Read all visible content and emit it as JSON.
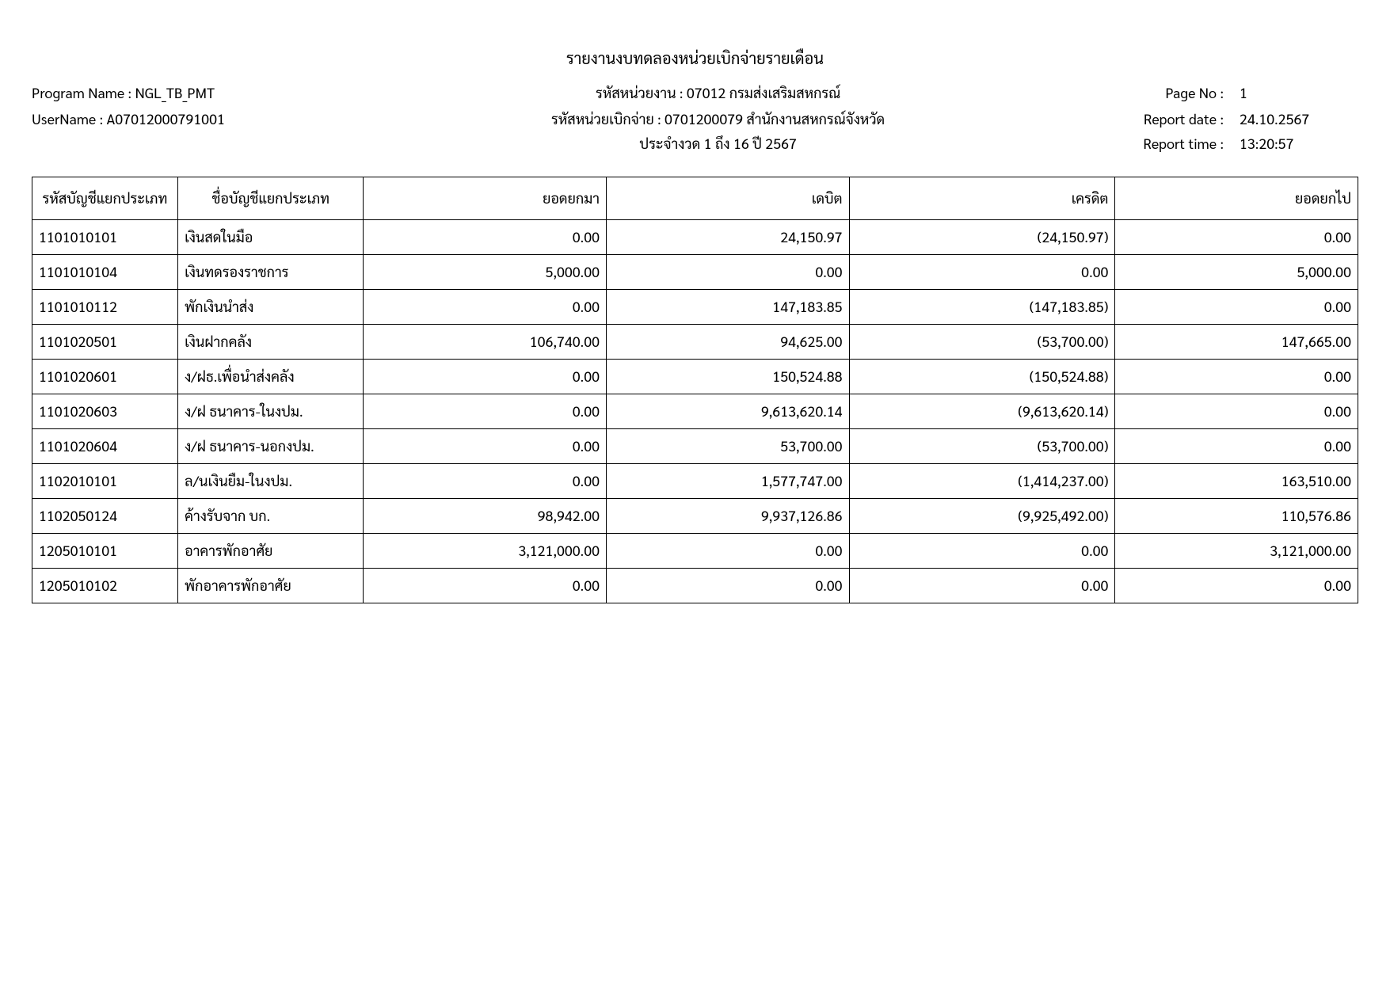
{
  "report_title": "รายงานงบทดลองหน่วยเบิกจ่ายรายเดือน",
  "header": {
    "program_label": "Program Name : NGL_TB_PMT",
    "username_label": "UserName : A07012000791001",
    "agency_code": "รหัสหน่วยงาน : 07012 กรมส่งเสริมสหกรณ์",
    "disbursement_code": "รหัสหน่วยเบิกจ่าย : 0701200079 สำนักงานสหกรณ์จังหวัด",
    "period": "ประจำงวด 1 ถึง 16 ปี 2567",
    "page_label": "Page No :",
    "page_value": "1",
    "report_date_label": "Report date :",
    "report_date_value": "24.10.2567",
    "report_time_label": "Report time :",
    "report_time_value": "13:20:57"
  },
  "columns": [
    "รหัสบัญชีแยกประเภท",
    "ชื่อบัญชีแยกประเภท",
    "ยอดยกมา",
    "เดบิต",
    "เครดิต",
    "ยอดยกไป"
  ],
  "rows": [
    {
      "code": "1101010101",
      "name": "เงินสดในมือ",
      "open": "0.00",
      "debit": "24,150.97",
      "credit": "(24,150.97)",
      "close": "0.00"
    },
    {
      "code": "1101010104",
      "name": "เงินทดรองราชการ",
      "open": "5,000.00",
      "debit": "0.00",
      "credit": "0.00",
      "close": "5,000.00"
    },
    {
      "code": "1101010112",
      "name": "พักเงินนำส่ง",
      "open": "0.00",
      "debit": "147,183.85",
      "credit": "(147,183.85)",
      "close": "0.00"
    },
    {
      "code": "1101020501",
      "name": "เงินฝากคลัง",
      "open": "106,740.00",
      "debit": "94,625.00",
      "credit": "(53,700.00)",
      "close": "147,665.00"
    },
    {
      "code": "1101020601",
      "name": "ง/ฝธ.เพื่อนำส่งคลัง",
      "open": "0.00",
      "debit": "150,524.88",
      "credit": "(150,524.88)",
      "close": "0.00"
    },
    {
      "code": "1101020603",
      "name": "ง/ฝ ธนาคาร-ในงปม.",
      "open": "0.00",
      "debit": "9,613,620.14",
      "credit": "(9,613,620.14)",
      "close": "0.00"
    },
    {
      "code": "1101020604",
      "name": "ง/ฝ ธนาคาร-นอกงปม.",
      "open": "0.00",
      "debit": "53,700.00",
      "credit": "(53,700.00)",
      "close": "0.00"
    },
    {
      "code": "1102010101",
      "name": "ล/นเงินยืม-ในงปม.",
      "open": "0.00",
      "debit": "1,577,747.00",
      "credit": "(1,414,237.00)",
      "close": "163,510.00"
    },
    {
      "code": "1102050124",
      "name": "ค้างรับจาก บก.",
      "open": "98,942.00",
      "debit": "9,937,126.86",
      "credit": "(9,925,492.00)",
      "close": "110,576.86"
    },
    {
      "code": "1205010101",
      "name": "อาคารพักอาศัย",
      "open": "3,121,000.00",
      "debit": "0.00",
      "credit": "0.00",
      "close": "3,121,000.00"
    },
    {
      "code": "1205010102",
      "name": "พักอาคารพักอาศัย",
      "open": "0.00",
      "debit": "0.00",
      "credit": "0.00",
      "close": "0.00"
    }
  ],
  "styling": {
    "font_family": "Tahoma",
    "body_fontsize": 18,
    "title_fontsize": 20,
    "border_color": "#000000",
    "background_color": "#ffffff",
    "text_color": "#000000",
    "column_widths_pct": [
      11,
      14,
      18.75,
      18.75,
      18.75,
      18.75
    ],
    "number_align": "right",
    "text_align": "left",
    "header_align": "center"
  }
}
